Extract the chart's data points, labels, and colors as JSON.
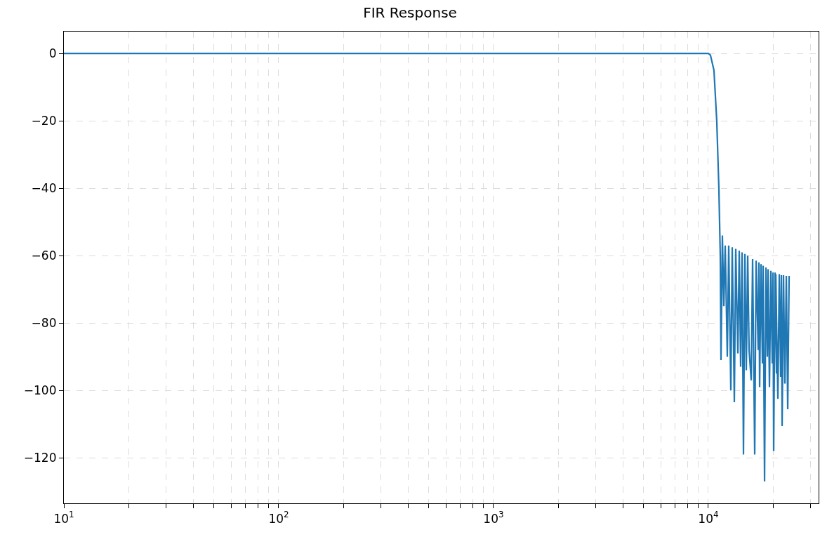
{
  "chart_data": {
    "type": "line",
    "title": "FIR Response",
    "x": [
      10,
      10000,
      10228,
      10620,
      10944,
      11195,
      11365,
      11451,
      11625,
      11802,
      11981,
      12255,
      12441,
      12725,
      12918,
      13213,
      13414,
      13720,
      13928,
      14140,
      14354,
      14572,
      14793,
      15018,
      15246,
      15478,
      15831,
      16071,
      16438,
      16688,
      17069,
      17198,
      17328,
      17591,
      17858,
      17993,
      18266,
      18543,
      18824,
      18966,
      19254,
      19546,
      19843,
      19992,
      20143,
      20449,
      20759,
      20603,
      21074,
      21394,
      21718,
      21883,
      22048,
      22382,
      22721,
      23066,
      23416,
      23771
    ],
    "series": [
      {
        "color": "#1f77b4",
        "values": [
          0,
          0,
          -0.5,
          -5,
          -20,
          -40,
          -60,
          -91,
          -54,
          -75,
          -57,
          -90,
          -57,
          -100,
          -57.5,
          -103.5,
          -58,
          -89,
          -58.5,
          -93,
          -59,
          -119,
          -59.5,
          -94,
          -60,
          -88,
          -97,
          -61,
          -119,
          -61.5,
          -88,
          -62,
          -99,
          -62.5,
          -92,
          -63,
          -127,
          -63.5,
          -90,
          -64,
          -99,
          -64.5,
          -92,
          -65,
          -118,
          -65,
          -95,
          -65.5,
          -102.5,
          -65.5,
          -96,
          -65.8,
          -110.6,
          -65.8,
          -98,
          -66,
          -105.6,
          -66
        ]
      }
    ],
    "log": "x",
    "xlim": [
      10,
      32600
    ],
    "ylim": [
      -133.5,
      6.5
    ],
    "xticks": [
      {
        "value": 10,
        "label": "10$^{1}$"
      },
      {
        "value": 20,
        "label": null
      },
      {
        "value": 30,
        "label": null
      },
      {
        "value": 40,
        "label": null
      },
      {
        "value": 50,
        "label": null
      },
      {
        "value": 60,
        "label": null
      },
      {
        "value": 70,
        "label": null
      },
      {
        "value": 80,
        "label": null
      },
      {
        "value": 90,
        "label": null
      },
      {
        "value": 100,
        "label": "10$^{2}$"
      },
      {
        "value": 200,
        "label": null
      },
      {
        "value": 300,
        "label": null
      },
      {
        "value": 400,
        "label": null
      },
      {
        "value": 500,
        "label": null
      },
      {
        "value": 600,
        "label": null
      },
      {
        "value": 700,
        "label": null
      },
      {
        "value": 800,
        "label": null
      },
      {
        "value": 900,
        "label": null
      },
      {
        "value": 1000,
        "label": "10$^{3}$"
      },
      {
        "value": 2000,
        "label": null
      },
      {
        "value": 3000,
        "label": null
      },
      {
        "value": 4000,
        "label": null
      },
      {
        "value": 5000,
        "label": null
      },
      {
        "value": 6000,
        "label": null
      },
      {
        "value": 7000,
        "label": null
      },
      {
        "value": 8000,
        "label": null
      },
      {
        "value": 9000,
        "label": null
      },
      {
        "value": 10000,
        "label": "10$^{4}$"
      },
      {
        "value": 20000,
        "label": null
      },
      {
        "value": 30000,
        "label": null
      }
    ],
    "yticks": [
      0,
      {
        "value": -20,
        "label": "−20"
      },
      {
        "value": -40,
        "label": "−40"
      },
      {
        "value": -60,
        "label": "−60"
      },
      {
        "value": -80,
        "label": "−80"
      },
      {
        "value": -100,
        "label": "−100"
      },
      {
        "value": -120,
        "label": "−120"
      }
    ],
    "grid": true,
    "marker": "none",
    "line_style": "solid"
  }
}
